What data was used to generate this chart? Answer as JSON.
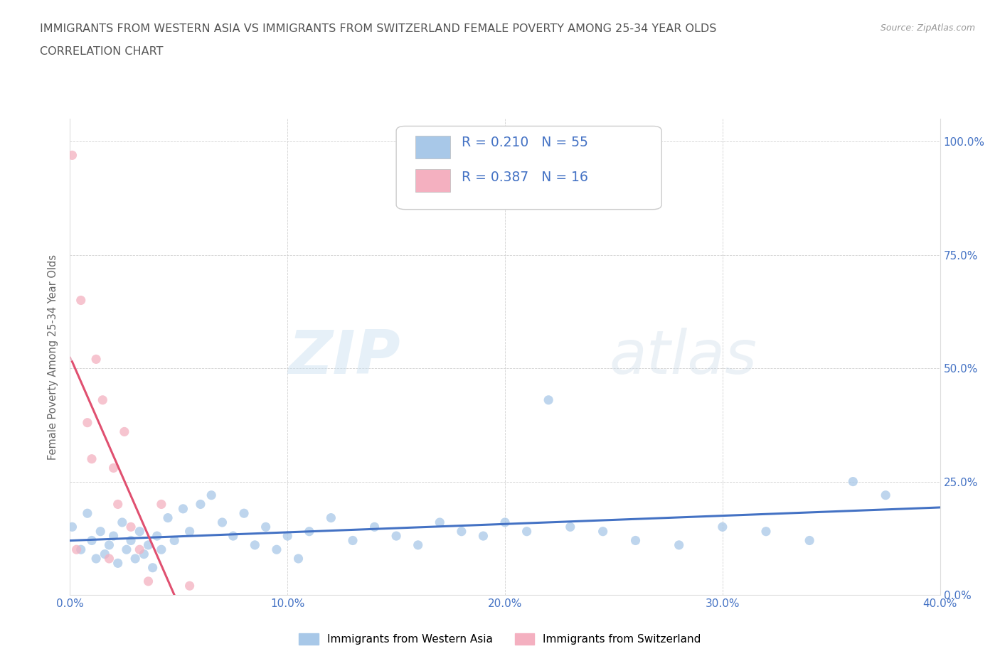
{
  "title_line1": "IMMIGRANTS FROM WESTERN ASIA VS IMMIGRANTS FROM SWITZERLAND FEMALE POVERTY AMONG 25-34 YEAR OLDS",
  "title_line2": "CORRELATION CHART",
  "source_text": "Source: ZipAtlas.com",
  "ylabel": "Female Poverty Among 25-34 Year Olds",
  "xlim": [
    0.0,
    0.4
  ],
  "ylim": [
    0.0,
    1.05
  ],
  "xticks": [
    0.0,
    0.1,
    0.2,
    0.3,
    0.4
  ],
  "xticklabels": [
    "0.0%",
    "10.0%",
    "20.0%",
    "30.0%",
    "40.0%"
  ],
  "yticks": [
    0.0,
    0.25,
    0.5,
    0.75,
    1.0
  ],
  "right_yticklabels": [
    "0.0%",
    "25.0%",
    "50.0%",
    "75.0%",
    "100.0%"
  ],
  "series1_color": "#a8c8e8",
  "series2_color": "#f4b0c0",
  "line1_color": "#4472c4",
  "line2_color": "#e05070",
  "line2_dash_color": "#e8b0c0",
  "R1": 0.21,
  "N1": 55,
  "R2": 0.387,
  "N2": 16,
  "legend1": "Immigrants from Western Asia",
  "legend2": "Immigrants from Switzerland",
  "watermark_zip": "ZIP",
  "watermark_atlas": "atlas",
  "title_color": "#555555",
  "axis_label_color": "#666666",
  "tick_color": "#4472c4",
  "series1_x": [
    0.001,
    0.005,
    0.008,
    0.01,
    0.012,
    0.014,
    0.016,
    0.018,
    0.02,
    0.022,
    0.024,
    0.026,
    0.028,
    0.03,
    0.032,
    0.034,
    0.036,
    0.038,
    0.04,
    0.042,
    0.045,
    0.048,
    0.052,
    0.055,
    0.06,
    0.065,
    0.07,
    0.075,
    0.08,
    0.085,
    0.09,
    0.095,
    0.1,
    0.105,
    0.11,
    0.12,
    0.13,
    0.14,
    0.15,
    0.16,
    0.17,
    0.18,
    0.19,
    0.2,
    0.21,
    0.22,
    0.23,
    0.245,
    0.26,
    0.28,
    0.3,
    0.32,
    0.34,
    0.36,
    0.375
  ],
  "series1_y": [
    0.15,
    0.1,
    0.18,
    0.12,
    0.08,
    0.14,
    0.09,
    0.11,
    0.13,
    0.07,
    0.16,
    0.1,
    0.12,
    0.08,
    0.14,
    0.09,
    0.11,
    0.06,
    0.13,
    0.1,
    0.17,
    0.12,
    0.19,
    0.14,
    0.2,
    0.22,
    0.16,
    0.13,
    0.18,
    0.11,
    0.15,
    0.1,
    0.13,
    0.08,
    0.14,
    0.17,
    0.12,
    0.15,
    0.13,
    0.11,
    0.16,
    0.14,
    0.13,
    0.16,
    0.14,
    0.43,
    0.15,
    0.14,
    0.12,
    0.11,
    0.15,
    0.14,
    0.12,
    0.25,
    0.22
  ],
  "series2_x": [
    0.001,
    0.003,
    0.005,
    0.008,
    0.01,
    0.012,
    0.015,
    0.018,
    0.02,
    0.022,
    0.025,
    0.028,
    0.032,
    0.036,
    0.042,
    0.055
  ],
  "series2_y": [
    0.97,
    0.1,
    0.65,
    0.38,
    0.3,
    0.52,
    0.43,
    0.08,
    0.28,
    0.2,
    0.36,
    0.15,
    0.1,
    0.03,
    0.2,
    0.02
  ]
}
